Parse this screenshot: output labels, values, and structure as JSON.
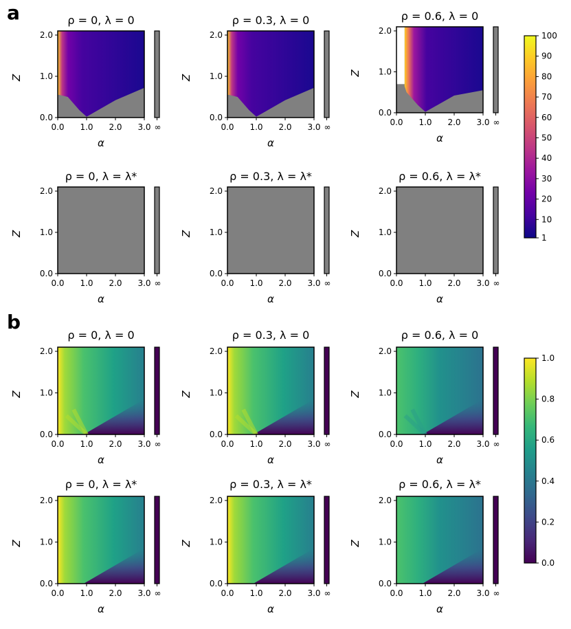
{
  "chart_data": {
    "type": "heatmap",
    "panels": [
      {
        "label": "a",
        "colormap": "plasma",
        "colorbar_ticks": [
          "100",
          "90",
          "80",
          "70",
          "60",
          "50",
          "40",
          "30",
          "20",
          "10",
          "1"
        ],
        "colorbar_range": [
          1,
          100
        ],
        "subplots": [
          {
            "title": "ρ = 0, λ = 0",
            "rho": 0,
            "lambda": "0",
            "fill": "plasma",
            "has_boundary": true
          },
          {
            "title": "ρ = 0.3, λ = 0",
            "rho": 0.3,
            "lambda": "0",
            "fill": "plasma",
            "has_boundary": true
          },
          {
            "title": "ρ = 0.6, λ = 0",
            "rho": 0.6,
            "lambda": "0",
            "fill": "plasma",
            "has_boundary": true
          },
          {
            "title": "ρ = 0, λ = λ*",
            "rho": 0,
            "lambda": "λ*",
            "fill": "gray",
            "has_boundary": false
          },
          {
            "title": "ρ = 0.3, λ = λ*",
            "rho": 0.3,
            "lambda": "λ*",
            "fill": "gray",
            "has_boundary": false
          },
          {
            "title": "ρ = 0.6, λ = λ*",
            "rho": 0.6,
            "lambda": "λ*",
            "fill": "gray",
            "has_boundary": false
          }
        ]
      },
      {
        "label": "b",
        "colormap": "viridis",
        "colorbar_ticks": [
          "1.0",
          "0.8",
          "0.6",
          "0.4",
          "0.2",
          "0.0"
        ],
        "colorbar_range": [
          0,
          1
        ],
        "subplots": [
          {
            "title": "ρ = 0, λ = 0",
            "rho": 0,
            "lambda": "0",
            "fill": "viridis"
          },
          {
            "title": "ρ = 0.3, λ = 0",
            "rho": 0.3,
            "lambda": "0",
            "fill": "viridis"
          },
          {
            "title": "ρ = 0.6, λ = 0",
            "rho": 0.6,
            "lambda": "0",
            "fill": "viridis"
          },
          {
            "title": "ρ = 0, λ = λ*",
            "rho": 0,
            "lambda": "λ*",
            "fill": "viridis"
          },
          {
            "title": "ρ = 0.3, λ = λ*",
            "rho": 0.3,
            "lambda": "λ*",
            "fill": "viridis"
          },
          {
            "title": "ρ = 0.6, λ = λ*",
            "rho": 0.6,
            "lambda": "λ*",
            "fill": "viridis"
          }
        ]
      }
    ],
    "xlabel": "α",
    "ylabel": "Z",
    "x_ticks": [
      "0.0",
      "1.0",
      "2.0",
      "3.0"
    ],
    "x_inf_tick": "∞",
    "y_ticks": [
      "0.0",
      "1.0",
      "2.0"
    ],
    "xlim": [
      0,
      3
    ],
    "ylim": [
      0,
      2.1
    ]
  },
  "colors": {
    "gray": "#808080",
    "plasma": [
      "#0d0887",
      "#46039f",
      "#7201a8",
      "#9c179e",
      "#bd3786",
      "#d8576b",
      "#ed7953",
      "#fb9f3a",
      "#fdca26",
      "#f0f921"
    ],
    "viridis": [
      "#440154",
      "#482878",
      "#3e4989",
      "#31688e",
      "#26828e",
      "#1f9e89",
      "#35b779",
      "#6ece58",
      "#b5de2b",
      "#fde725"
    ]
  }
}
